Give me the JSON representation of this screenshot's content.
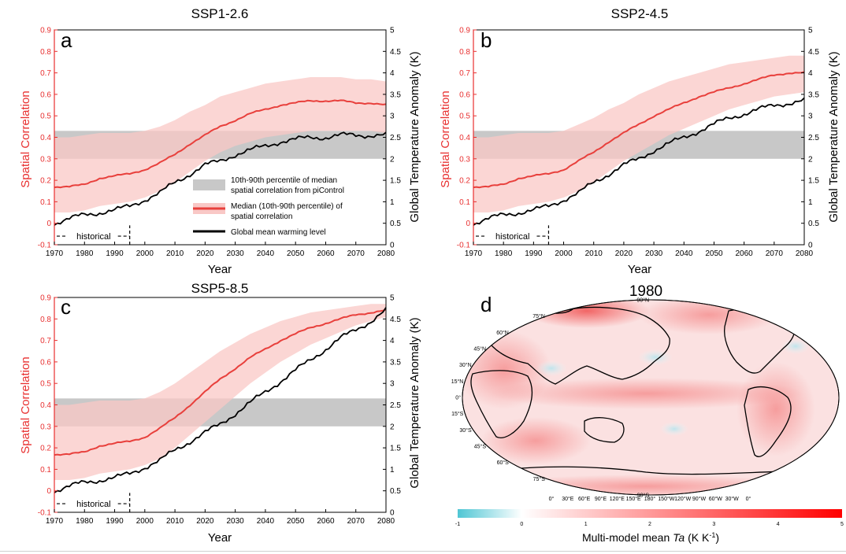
{
  "colors": {
    "median": "#e8403c",
    "band": "#f9c8c6",
    "picontrol": "#c8c8c8",
    "warming": "#000000",
    "left_axis": "#e83030"
  },
  "chart_data": [
    {
      "type": "line",
      "panel_letter": "a",
      "title": "SSP1-2.6",
      "xlabel": "Year",
      "ylabel": "Spatial Correlation",
      "y2label": "Global Temperature Anomaly (K)",
      "xlim": [
        1970,
        2080
      ],
      "ylim": [
        -0.1,
        0.9
      ],
      "y2lim": [
        0,
        5
      ],
      "x_ticks": [
        "1970",
        "1980",
        "1990",
        "2000",
        "2010",
        "2020",
        "2030",
        "2040",
        "2050",
        "2060",
        "2070",
        "2080"
      ],
      "y_ticks": [
        "-0.1",
        "0",
        "0.1",
        "0.2",
        "0.3",
        "0.4",
        "0.5",
        "0.6",
        "0.7",
        "0.8",
        "0.9"
      ],
      "y2_ticks": [
        "0",
        "0.5",
        "1",
        "1.5",
        "2",
        "2.5",
        "3",
        "3.5",
        "4",
        "4.5",
        "5"
      ],
      "picontrol_band": [
        0.3,
        0.43
      ],
      "historical_label": "historical",
      "historical_end": 1995,
      "legend": [
        {
          "key": "picontrol",
          "line1": "10th-90th percentile of median",
          "line2": "spatial correlation from piControl"
        },
        {
          "key": "median",
          "line1": "Median (10th-90th percentile) of",
          "line2": "spatial correlation"
        },
        {
          "key": "warming",
          "line1": "Global mean warming level",
          "line2": ""
        }
      ],
      "series": [
        {
          "name": "Median (10th-90th percentile) of spatial correlation",
          "axis": "left",
          "x": [
            1970,
            1975,
            1980,
            1985,
            1990,
            1995,
            2000,
            2005,
            2010,
            2015,
            2020,
            2025,
            2030,
            2035,
            2040,
            2045,
            2050,
            2055,
            2060,
            2065,
            2070,
            2075,
            2080
          ],
          "values": [
            0.17,
            0.17,
            0.18,
            0.21,
            0.22,
            0.23,
            0.25,
            0.28,
            0.32,
            0.37,
            0.41,
            0.45,
            0.48,
            0.51,
            0.53,
            0.55,
            0.56,
            0.57,
            0.57,
            0.57,
            0.56,
            0.56,
            0.55
          ],
          "lower": [
            0.05,
            0.05,
            0.06,
            0.08,
            0.09,
            0.1,
            0.12,
            0.15,
            0.19,
            0.24,
            0.29,
            0.33,
            0.36,
            0.38,
            0.4,
            0.41,
            0.42,
            0.43,
            0.43,
            0.43,
            0.43,
            0.43,
            0.42
          ],
          "upper": [
            0.4,
            0.4,
            0.41,
            0.42,
            0.42,
            0.42,
            0.43,
            0.45,
            0.48,
            0.52,
            0.55,
            0.59,
            0.61,
            0.63,
            0.65,
            0.66,
            0.67,
            0.68,
            0.68,
            0.68,
            0.67,
            0.67,
            0.66
          ]
        },
        {
          "name": "Global mean warming level",
          "axis": "right",
          "x": [
            1970,
            1975,
            1980,
            1985,
            1990,
            1995,
            2000,
            2005,
            2010,
            2015,
            2020,
            2025,
            2030,
            2035,
            2040,
            2045,
            2050,
            2055,
            2060,
            2065,
            2070,
            2075,
            2080
          ],
          "values": [
            0.5,
            0.6,
            0.7,
            0.75,
            0.8,
            0.9,
            1.05,
            1.2,
            1.45,
            1.65,
            1.85,
            1.95,
            2.1,
            2.2,
            2.3,
            2.4,
            2.45,
            2.5,
            2.5,
            2.55,
            2.55,
            2.55,
            2.55
          ]
        }
      ]
    },
    {
      "type": "line",
      "panel_letter": "b",
      "title": "SSP2-4.5",
      "xlabel": "Year",
      "ylabel": "Spatial Correlation",
      "y2label": "Global Temperature Anomaly (K)",
      "xlim": [
        1970,
        2080
      ],
      "ylim": [
        -0.1,
        0.9
      ],
      "y2lim": [
        0,
        5
      ],
      "x_ticks": [
        "1970",
        "1980",
        "1990",
        "2000",
        "2010",
        "2020",
        "2030",
        "2040",
        "2050",
        "2060",
        "2070",
        "2080"
      ],
      "y_ticks": [
        "-0.1",
        "0",
        "0.1",
        "0.2",
        "0.3",
        "0.4",
        "0.5",
        "0.6",
        "0.7",
        "0.8",
        "0.9"
      ],
      "y2_ticks": [
        "0",
        "0.5",
        "1",
        "1.5",
        "2",
        "2.5",
        "3",
        "3.5",
        "4",
        "4.5",
        "5"
      ],
      "picontrol_band": [
        0.3,
        0.43
      ],
      "historical_label": "historical",
      "historical_end": 1995,
      "series": [
        {
          "name": "Median (10th-90th percentile) of spatial correlation",
          "axis": "left",
          "x": [
            1970,
            1975,
            1980,
            1985,
            1990,
            1995,
            2000,
            2005,
            2010,
            2015,
            2020,
            2025,
            2030,
            2035,
            2040,
            2045,
            2050,
            2055,
            2060,
            2065,
            2070,
            2075,
            2080
          ],
          "values": [
            0.17,
            0.17,
            0.18,
            0.21,
            0.22,
            0.23,
            0.25,
            0.29,
            0.33,
            0.38,
            0.42,
            0.46,
            0.5,
            0.53,
            0.56,
            0.59,
            0.61,
            0.63,
            0.65,
            0.67,
            0.69,
            0.7,
            0.7
          ],
          "lower": [
            0.05,
            0.05,
            0.06,
            0.08,
            0.09,
            0.1,
            0.12,
            0.15,
            0.19,
            0.24,
            0.29,
            0.33,
            0.37,
            0.41,
            0.44,
            0.47,
            0.5,
            0.53,
            0.55,
            0.57,
            0.59,
            0.6,
            0.61
          ],
          "upper": [
            0.4,
            0.4,
            0.41,
            0.42,
            0.42,
            0.42,
            0.43,
            0.46,
            0.49,
            0.53,
            0.56,
            0.6,
            0.63,
            0.66,
            0.68,
            0.7,
            0.72,
            0.74,
            0.75,
            0.76,
            0.77,
            0.78,
            0.78
          ]
        },
        {
          "name": "Global mean warming level",
          "axis": "right",
          "x": [
            1970,
            1975,
            1980,
            1985,
            1990,
            1995,
            2000,
            2005,
            2010,
            2015,
            2020,
            2025,
            2030,
            2035,
            2040,
            2045,
            2050,
            2055,
            2060,
            2065,
            2070,
            2075,
            2080
          ],
          "values": [
            0.5,
            0.6,
            0.7,
            0.75,
            0.8,
            0.9,
            1.05,
            1.2,
            1.45,
            1.65,
            1.85,
            2.0,
            2.2,
            2.35,
            2.5,
            2.65,
            2.8,
            2.95,
            3.05,
            3.15,
            3.25,
            3.3,
            3.35
          ]
        }
      ]
    },
    {
      "type": "line",
      "panel_letter": "c",
      "title": "SSP5-8.5",
      "xlabel": "Year",
      "ylabel": "Spatial Correlation",
      "y2label": "Global Temperature Anomaly (K)",
      "xlim": [
        1970,
        2080
      ],
      "ylim": [
        -0.1,
        0.9
      ],
      "y2lim": [
        0,
        5
      ],
      "x_ticks": [
        "1970",
        "1980",
        "1990",
        "2000",
        "2010",
        "2020",
        "2030",
        "2040",
        "2050",
        "2060",
        "2070",
        "2080"
      ],
      "y_ticks": [
        "-0.1",
        "0",
        "0.1",
        "0.2",
        "0.3",
        "0.4",
        "0.5",
        "0.6",
        "0.7",
        "0.8",
        "0.9"
      ],
      "y2_ticks": [
        "0",
        "0.5",
        "1",
        "1.5",
        "2",
        "2.5",
        "3",
        "3.5",
        "4",
        "4.5",
        "5"
      ],
      "picontrol_band": [
        0.3,
        0.43
      ],
      "historical_label": "historical",
      "historical_end": 1995,
      "series": [
        {
          "name": "Median (10th-90th percentile) of spatial correlation",
          "axis": "left",
          "x": [
            1970,
            1975,
            1980,
            1985,
            1990,
            1995,
            2000,
            2005,
            2010,
            2015,
            2020,
            2025,
            2030,
            2035,
            2040,
            2045,
            2050,
            2055,
            2060,
            2065,
            2070,
            2075,
            2080
          ],
          "values": [
            0.17,
            0.17,
            0.18,
            0.21,
            0.22,
            0.23,
            0.25,
            0.29,
            0.34,
            0.4,
            0.46,
            0.52,
            0.57,
            0.62,
            0.66,
            0.7,
            0.73,
            0.76,
            0.78,
            0.8,
            0.82,
            0.83,
            0.84
          ],
          "lower": [
            0.05,
            0.05,
            0.06,
            0.08,
            0.09,
            0.1,
            0.12,
            0.15,
            0.2,
            0.26,
            0.32,
            0.38,
            0.44,
            0.5,
            0.55,
            0.6,
            0.64,
            0.68,
            0.71,
            0.74,
            0.77,
            0.79,
            0.81
          ],
          "upper": [
            0.4,
            0.4,
            0.41,
            0.42,
            0.42,
            0.42,
            0.43,
            0.46,
            0.5,
            0.55,
            0.6,
            0.65,
            0.69,
            0.73,
            0.76,
            0.79,
            0.81,
            0.83,
            0.84,
            0.85,
            0.86,
            0.87,
            0.87
          ]
        },
        {
          "name": "Global mean warming level",
          "axis": "right",
          "x": [
            1970,
            1975,
            1980,
            1985,
            1990,
            1995,
            2000,
            2005,
            2010,
            2015,
            2020,
            2025,
            2030,
            2035,
            2040,
            2045,
            2050,
            2055,
            2060,
            2065,
            2070,
            2075,
            2080
          ],
          "values": [
            0.5,
            0.6,
            0.7,
            0.75,
            0.8,
            0.9,
            1.05,
            1.2,
            1.45,
            1.65,
            1.85,
            2.05,
            2.3,
            2.55,
            2.8,
            3.05,
            3.3,
            3.55,
            3.8,
            4.05,
            4.25,
            4.45,
            4.7
          ]
        }
      ]
    },
    {
      "type": "heatmap",
      "panel_letter": "d",
      "title": "1980",
      "colorbar_label_prefix": "Multi-model mean ",
      "colorbar_label_var": "Ta",
      "colorbar_label_unit": " (K K",
      "colorbar_label_sup": "-1",
      "colorbar_label_close": ")",
      "colorbar_range": [
        -1,
        5
      ],
      "colorbar_ticks": [
        "-1",
        "0",
        "1",
        "2",
        "3",
        "4",
        "5"
      ],
      "lat_labels": [
        "90°N",
        "75°N",
        "60°N",
        "45°N",
        "30°N",
        "15°N",
        "0°",
        "15°S",
        "30°S",
        "45°S",
        "60°S",
        "75°S",
        "90°S"
      ],
      "lon_labels": [
        "0°",
        "30°E",
        "60°E",
        "90°E",
        "120°E",
        "150°E",
        "180°",
        "150°W",
        "120°W",
        "90°W",
        "60°W",
        "30°W",
        "0°"
      ]
    }
  ]
}
